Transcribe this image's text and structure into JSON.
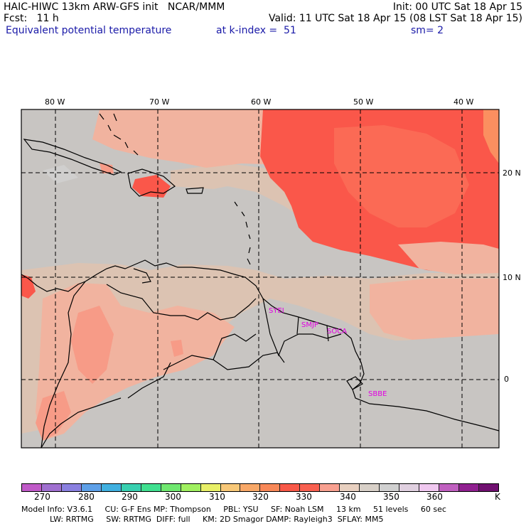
{
  "header": {
    "line1_left": "HAIC-HIWC 13km ARW-GFS init   NCAR/MMM",
    "line1_right": "Init: 00 UTC Sat 18 Apr 15",
    "line2_left": "Fcst:   11 h",
    "line2_right": "Valid: 11 UTC Sat 18 Apr 15 (08 LST Sat 18 Apr 15)",
    "field": "Equivalent potential temperature",
    "level": "at k-index =  51",
    "smooth": "sm= 2"
  },
  "map": {
    "lon_labels": [
      "80 W",
      "70 W",
      "60 W",
      "50 W",
      "40 W"
    ],
    "lat_labels": [
      "20 N",
      "10 N",
      "0"
    ],
    "stations": [
      "SYEI",
      "SMJP",
      "SOCA",
      "SBBE"
    ],
    "colors": {
      "grey": "#c8c5c2",
      "tan": "#dcc3b2",
      "peach": "#f1b39f",
      "salmon": "#f79b87",
      "red": "#fa574a",
      "orange": "#fb8f60",
      "land_grey": "#d0cfce",
      "station": "#e200e2"
    }
  },
  "colorbar": {
    "colors": [
      "#c05ac8",
      "#a070d0",
      "#8a80e0",
      "#5ea0e8",
      "#40b0e0",
      "#38d0b0",
      "#40e090",
      "#70e870",
      "#a0f060",
      "#e8f068",
      "#f8c878",
      "#f8a868",
      "#f88858",
      "#f85848",
      "#f86050",
      "#f8a090",
      "#e8d0c0",
      "#d8d0c8",
      "#d0d0d0",
      "#e0d0e0",
      "#f0c8f0",
      "#c060c0",
      "#902090",
      "#701070"
    ],
    "labels": [
      "270",
      "280",
      "290",
      "300",
      "310",
      "320",
      "330",
      "340",
      "350",
      "360",
      "K"
    ]
  },
  "footer": {
    "line1": "Model Info: V3.6.1     CU: G-F Ens MP: Thompson     PBL: YSU     SF: Noah LSM     13 km     51 levels     60 sec",
    "line2": "LW: RRTMG     SW: RRTMG  DIFF: full     KM: 2D Smagor DAMP: Rayleigh3  SFLAY: MM5"
  }
}
